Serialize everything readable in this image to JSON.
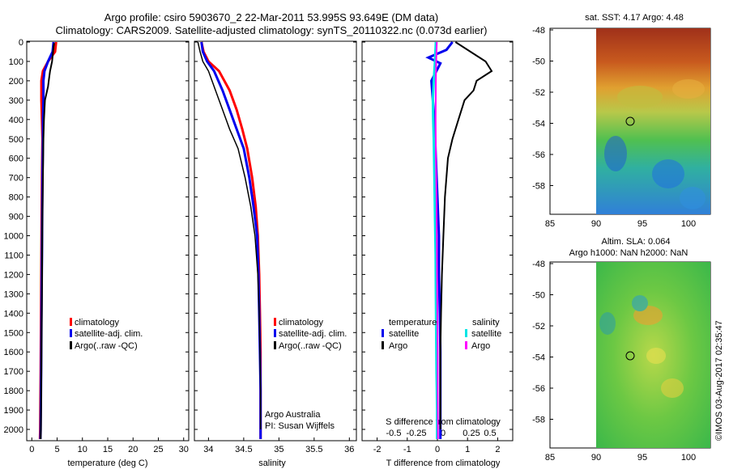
{
  "title_line1": "Argo profile: csiro 5903670_2 22-Mar-2011 53.995S 93.649E (DM data)",
  "title_line2": "Climatology: CARS2009. Satellite-adjusted climatology: synTS_20110322.nc (0.073d earlier)",
  "colors": {
    "climatology": "#ff0000",
    "satellite": "#0000ee",
    "argo": "#000000",
    "sal_satellite": "#00e5e5",
    "sal_argo": "#ff00ff"
  },
  "depth_ticks": [
    "0",
    "100",
    "200",
    "300",
    "400",
    "500",
    "600",
    "700",
    "800",
    "900",
    "1000",
    "1100",
    "1200",
    "1300",
    "1400",
    "1500",
    "1600",
    "1700",
    "1800",
    "1900",
    "2000"
  ],
  "temp_panel": {
    "xlabel": "temperature (deg C)",
    "xticks": [
      "0",
      "5",
      "10",
      "15",
      "20",
      "25",
      "30"
    ],
    "legend": [
      "climatology",
      "satellite-adj. clim.",
      "Argo(..raw -QC)"
    ]
  },
  "sal_panel": {
    "xlabel": "salinity",
    "xticks": [
      "34",
      "34.5",
      "35",
      "35.5",
      "36"
    ],
    "legend": [
      "climatology",
      "satellite-adj. clim.",
      "Argo(..raw -QC)"
    ],
    "note1": "Argo Australia",
    "note2": "PI: Susan Wijffels"
  },
  "diff_panel": {
    "xlabel": "T difference from climatology",
    "xticks": [
      "-2",
      "-1",
      "0",
      "1",
      "2"
    ],
    "s_label": "S difference from climatology",
    "s_ticks": [
      "-0.5",
      "-0.25",
      "0",
      "0.25",
      "0.5"
    ],
    "legend_t_head": "temperature",
    "legend_s_head": "salinity",
    "legend_t": [
      "satellite",
      "Argo"
    ],
    "legend_s": [
      "satellite",
      "Argo"
    ]
  },
  "map_top": {
    "title": "sat. SST: 4.17 Argo: 4.48",
    "yticks": [
      "-48",
      "-50",
      "-52",
      "-54",
      "-56",
      "-58"
    ],
    "xticks": [
      "85",
      "90",
      "95",
      "100"
    ]
  },
  "map_bottom": {
    "title1": "Altim. SLA: 0.064",
    "title2": "Argo h1000: NaN h2000: NaN",
    "yticks": [
      "-48",
      "-50",
      "-52",
      "-54",
      "-56",
      "-58"
    ],
    "xticks": [
      "85",
      "90",
      "95",
      "100"
    ]
  },
  "credit": "©IMOS 03-Aug-2017 02:35:47",
  "chart_data": [
    {
      "type": "line",
      "xlabel": "temperature (deg C)",
      "ylabel": "",
      "xlim": [
        -1,
        31
      ],
      "ylim": [
        2050,
        0
      ],
      "series": [
        {
          "name": "climatology",
          "x": [
            4.8,
            4.6,
            3.2,
            2.2,
            1.9,
            1.9,
            2.0,
            2.1,
            2.0,
            1.95,
            1.9,
            1.85,
            1.8,
            1.75,
            1.7,
            1.65,
            1.6
          ],
          "y": [
            0,
            50,
            100,
            150,
            200,
            300,
            400,
            500,
            700,
            900,
            1100,
            1300,
            1500,
            1700,
            1850,
            2000,
            2050
          ]
        },
        {
          "name": "satellite-adj. clim.",
          "x": [
            4.3,
            4.1,
            3.2,
            2.5,
            2.3,
            2.3,
            2.2,
            2.2,
            2.1,
            2.05,
            2.0,
            1.95,
            1.9,
            1.85,
            1.8,
            1.75,
            1.7
          ],
          "y": [
            0,
            50,
            100,
            150,
            200,
            300,
            400,
            500,
            700,
            900,
            1100,
            1300,
            1500,
            1700,
            1850,
            2000,
            2050
          ]
        },
        {
          "name": "Argo(..raw -QC)",
          "x": [
            4.4,
            4.2,
            4.0,
            3.6,
            3.4,
            3.2,
            2.6,
            2.4,
            2.3,
            2.2,
            2.1,
            2.05,
            2.0,
            1.95,
            1.9,
            1.85,
            1.8,
            1.75
          ],
          "y": [
            5,
            50,
            100,
            150,
            190,
            230,
            300,
            400,
            500,
            700,
            900,
            1100,
            1300,
            1500,
            1700,
            1850,
            2000,
            2050
          ]
        }
      ]
    },
    {
      "type": "line",
      "xlabel": "salinity",
      "ylabel": "",
      "xlim": [
        33.8,
        36.1
      ],
      "ylim": [
        2050,
        0
      ],
      "series": [
        {
          "name": "climatology",
          "x": [
            33.9,
            33.93,
            34.0,
            34.15,
            34.3,
            34.4,
            34.48,
            34.55,
            34.62,
            34.67,
            34.7,
            34.72,
            34.73,
            34.74,
            34.74,
            34.74,
            34.74
          ],
          "y": [
            0,
            50,
            100,
            150,
            250,
            350,
            450,
            550,
            700,
            850,
            1000,
            1200,
            1400,
            1600,
            1800,
            2000,
            2050
          ]
        },
        {
          "name": "satellite-adj. clim.",
          "x": [
            33.9,
            33.92,
            33.98,
            34.08,
            34.2,
            34.3,
            34.4,
            34.5,
            34.58,
            34.64,
            34.69,
            34.71,
            34.72,
            34.73,
            34.74,
            34.74,
            34.74
          ],
          "y": [
            0,
            50,
            100,
            150,
            250,
            350,
            450,
            550,
            700,
            850,
            1000,
            1200,
            1400,
            1600,
            1800,
            2000,
            2050
          ]
        },
        {
          "name": "Argo(..raw -QC)",
          "x": [
            33.85,
            33.88,
            33.92,
            34.0,
            34.1,
            34.2,
            34.3,
            34.42,
            34.52,
            34.6,
            34.66,
            34.7,
            34.72,
            34.73,
            34.74,
            34.74
          ],
          "y": [
            0,
            50,
            100,
            150,
            250,
            350,
            450,
            550,
            700,
            850,
            1000,
            1200,
            1400,
            1600,
            1800,
            2000
          ]
        }
      ]
    },
    {
      "type": "line",
      "xlabel": "T difference from climatology",
      "ylabel": "",
      "xlim": [
        -2.5,
        2.5
      ],
      "ylim": [
        2050,
        0
      ],
      "series": [
        {
          "name": "temperature satellite",
          "x": [
            0.5,
            0.3,
            -0.3,
            0.1,
            -0.2,
            -0.15,
            -0.1,
            -0.05,
            0,
            0.05,
            0.05,
            0.08,
            0.1,
            0.1,
            0.1,
            0.1
          ],
          "y": [
            0,
            40,
            80,
            110,
            200,
            300,
            400,
            600,
            800,
            1000,
            1200,
            1400,
            1600,
            1800,
            2000,
            2050
          ]
        },
        {
          "name": "temperature Argo",
          "x": [
            0.6,
            1.6,
            1.8,
            1.3,
            1.2,
            0.9,
            0.7,
            0.5,
            0.35,
            0.25,
            0.2,
            0.15,
            0.12,
            0.1,
            0.1
          ],
          "y": [
            0,
            100,
            150,
            200,
            250,
            300,
            400,
            500,
            600,
            800,
            1000,
            1200,
            1400,
            1600,
            2000
          ]
        },
        {
          "name": "salinity satellite",
          "x": [
            -0.05,
            -0.08,
            -0.12,
            -0.15,
            -0.14,
            -0.12,
            -0.1,
            -0.08,
            -0.06,
            -0.05,
            -0.04,
            -0.03,
            -0.02,
            -0.01,
            -0.01
          ],
          "y": [
            0,
            100,
            200,
            300,
            400,
            500,
            700,
            900,
            1100,
            1300,
            1500,
            1700,
            1800,
            1900,
            2050
          ]
        },
        {
          "name": "salinity Argo",
          "x": [
            -0.02,
            -0.04,
            -0.05,
            -0.06,
            -0.05,
            -0.03,
            -0.02,
            -0.01,
            0,
            0.01,
            0.01,
            0.02
          ],
          "y": [
            0,
            100,
            200,
            400,
            600,
            800,
            1000,
            1200,
            1400,
            1600,
            1800,
            2050
          ]
        }
      ]
    }
  ]
}
